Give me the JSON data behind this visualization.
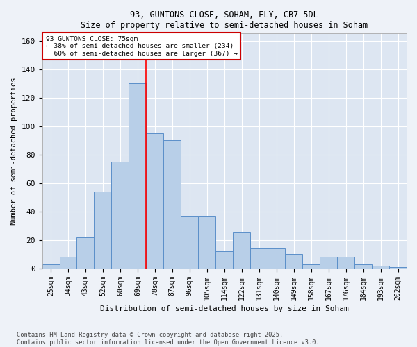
{
  "title_line1": "93, GUNTONS CLOSE, SOHAM, ELY, CB7 5DL",
  "title_line2": "Size of property relative to semi-detached houses in Soham",
  "xlabel": "Distribution of semi-detached houses by size in Soham",
  "ylabel": "Number of semi-detached properties",
  "categories": [
    "25sqm",
    "34sqm",
    "43sqm",
    "52sqm",
    "60sqm",
    "69sqm",
    "78sqm",
    "87sqm",
    "96sqm",
    "105sqm",
    "114sqm",
    "122sqm",
    "131sqm",
    "140sqm",
    "149sqm",
    "158sqm",
    "167sqm",
    "176sqm",
    "184sqm",
    "193sqm",
    "202sqm"
  ],
  "values": [
    3,
    8,
    22,
    54,
    75,
    130,
    95,
    90,
    37,
    37,
    12,
    25,
    14,
    14,
    10,
    3,
    8,
    8,
    3,
    2,
    1
  ],
  "bar_color": "#b8cfe8",
  "bar_edge_color": "#5b8fc9",
  "background_color": "#dde6f2",
  "grid_color": "#ffffff",
  "fig_bg_color": "#eef2f8",
  "ylim": [
    0,
    165
  ],
  "yticks": [
    0,
    20,
    40,
    60,
    80,
    100,
    120,
    140,
    160
  ],
  "property_label": "93 GUNTONS CLOSE: 75sqm",
  "smaller_pct": "38%",
  "smaller_count": 234,
  "larger_pct": "60%",
  "larger_count": 367,
  "red_line_index": 6,
  "annotation_box_edge_color": "#cc0000",
  "footer_line1": "Contains HM Land Registry data © Crown copyright and database right 2025.",
  "footer_line2": "Contains public sector information licensed under the Open Government Licence v3.0."
}
